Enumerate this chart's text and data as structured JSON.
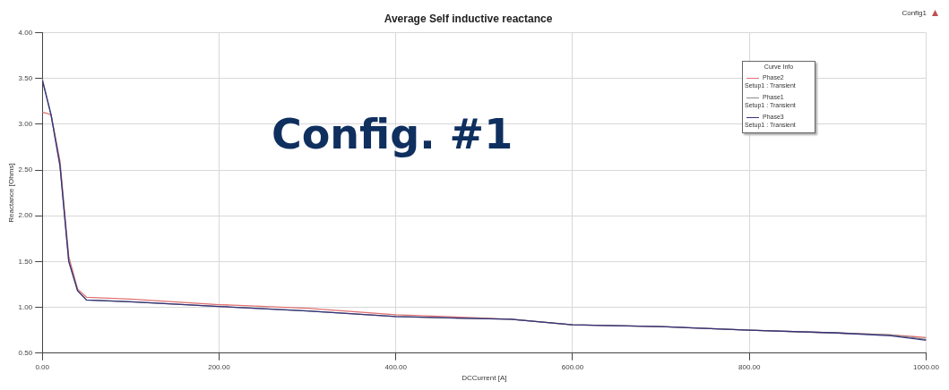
{
  "chart_data": {
    "type": "line",
    "title": "Average Self inductive reactance",
    "xlabel": "DCCurrent [A]",
    "ylabel": "Reactance [Ohms]",
    "legend_title": "Curve Info",
    "legend": "top right",
    "grid": true,
    "line_style": "solid",
    "annotations": [
      "Config. #1",
      "Config1"
    ],
    "xlim": [
      0,
      1000
    ],
    "xticks": [
      {
        "value": 0,
        "label": "0.00"
      },
      {
        "value": 200,
        "label": "200.00"
      },
      {
        "value": 400,
        "label": "400.00"
      },
      {
        "value": 600,
        "label": "600.00"
      },
      {
        "value": 800,
        "label": "800.00"
      },
      {
        "value": 1000,
        "label": "1000.00"
      }
    ],
    "ylim": [
      0.5,
      4
    ],
    "yticks": [
      {
        "value": 0.5,
        "label": "0.50"
      },
      {
        "value": 1,
        "label": "1.00"
      },
      {
        "value": 1.5,
        "label": "1.50"
      },
      {
        "value": 2,
        "label": "2.00"
      },
      {
        "value": 2.5,
        "label": "2.50"
      },
      {
        "value": 3,
        "label": "3.00"
      },
      {
        "value": 3.5,
        "label": "3.50"
      },
      {
        "value": 4,
        "label": "4.00"
      }
    ],
    "series": [
      {
        "name": "Phase2 Setup1 : Transient",
        "color": "#e07070",
        "x": [
          0,
          5,
          10,
          20,
          30,
          40,
          50,
          100,
          200,
          300,
          400,
          480,
          530,
          600,
          700,
          800,
          900,
          960,
          1000
        ],
        "values": [
          3.13,
          3.12,
          3.1,
          2.6,
          1.55,
          1.2,
          1.11,
          1.09,
          1.03,
          0.99,
          0.92,
          0.89,
          0.87,
          0.81,
          0.79,
          0.75,
          0.72,
          0.7,
          0.67
        ]
      },
      {
        "name": "Phase1 Setup1 : Transient",
        "color": "#8a8a8a",
        "x": [
          0,
          10,
          20,
          30,
          40,
          50,
          100,
          200,
          300,
          400,
          480,
          530,
          600,
          700,
          800,
          900,
          960,
          1000
        ],
        "values": [
          3.5,
          3.1,
          2.55,
          1.5,
          1.18,
          1.08,
          1.06,
          1.01,
          0.96,
          0.9,
          0.88,
          0.87,
          0.81,
          0.79,
          0.75,
          0.72,
          0.7,
          0.65
        ]
      },
      {
        "name": "Phase3 Setup1 : Transient",
        "color": "#33337a",
        "x": [
          0,
          10,
          20,
          30,
          40,
          50,
          100,
          200,
          300,
          400,
          480,
          530,
          600,
          700,
          800,
          900,
          960,
          1000
        ],
        "values": [
          3.48,
          3.1,
          2.55,
          1.5,
          1.18,
          1.08,
          1.06,
          1.01,
          0.96,
          0.9,
          0.88,
          0.87,
          0.81,
          0.79,
          0.75,
          0.72,
          0.69,
          0.64
        ]
      }
    ]
  }
}
